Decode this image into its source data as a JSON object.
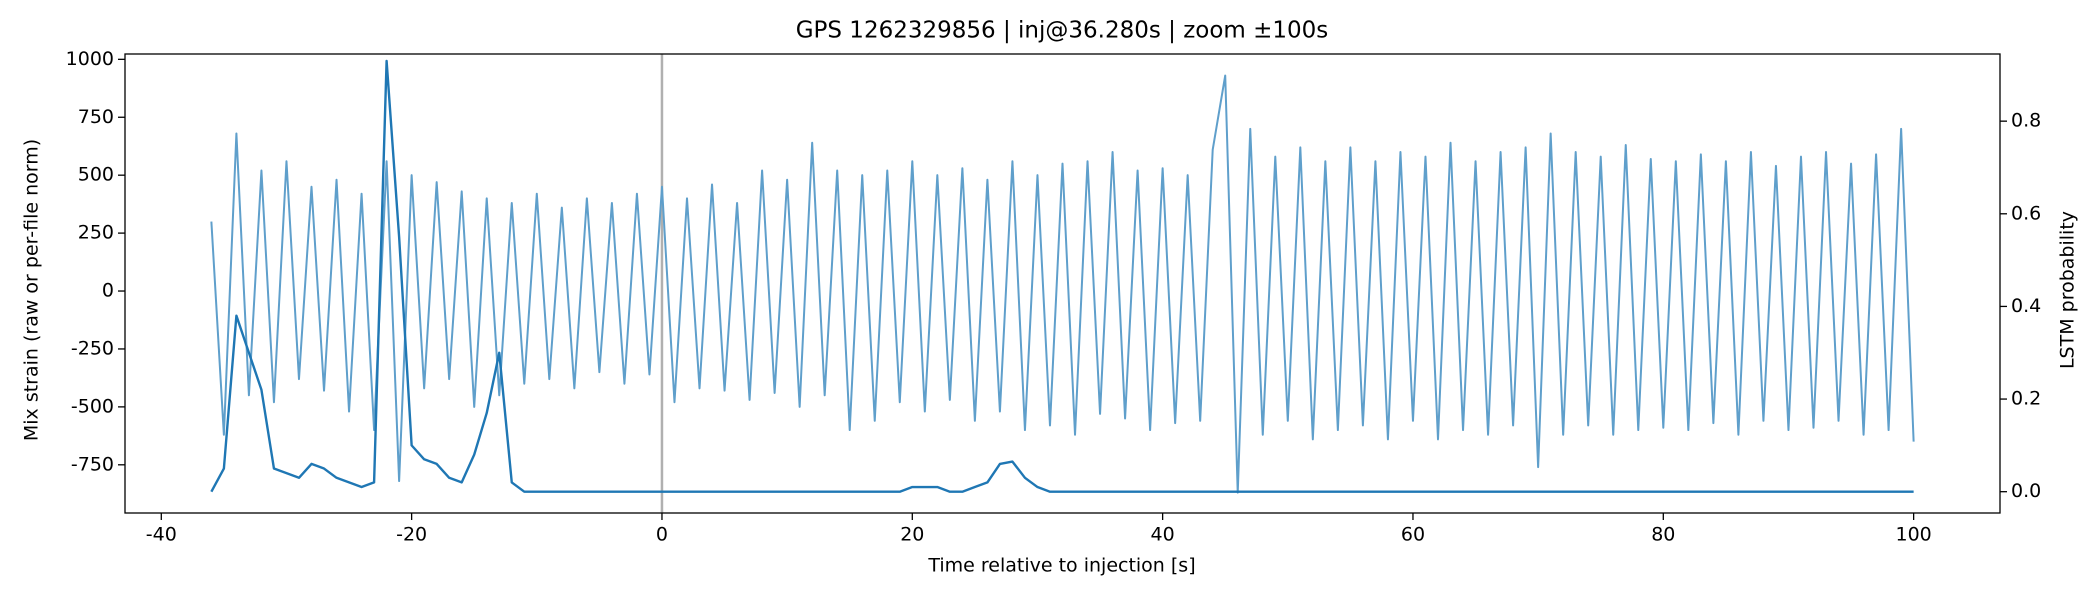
{
  "chart_data": {
    "type": "line",
    "title": "GPS 1262329856 | inj@36.280s | zoom ±100s",
    "x_label": "Time relative to injection [s]",
    "y_label": "Mix strain (raw or per-file norm)",
    "y2_label": "LSTM probability",
    "xlim": [
      -42.9,
      106.9
    ],
    "xticks": [
      -40,
      -20,
      0,
      20,
      40,
      60,
      80,
      100
    ],
    "ylim": [
      -958,
      1023
    ],
    "yticks": [
      -750,
      -500,
      -250,
      0,
      250,
      500,
      750,
      1000
    ],
    "y2lim": [
      -0.046,
      0.945
    ],
    "y2ticks": [
      {
        "value": 0,
        "label": "0.0"
      },
      0.2,
      0.4,
      0.6,
      0.8
    ],
    "grid": false,
    "vline": 0,
    "vline_color": "#b0b0b0",
    "x": [
      -36,
      -35,
      -34,
      -33,
      -32,
      -31,
      -30,
      -29,
      -28,
      -27,
      -26,
      -25,
      -24,
      -23,
      -22,
      -21,
      -20,
      -19,
      -18,
      -17,
      -16,
      -15,
      -14,
      -13,
      -12,
      -11,
      -10,
      -9,
      -8,
      -7,
      -6,
      -5,
      -4,
      -3,
      -2,
      -1,
      0,
      1,
      2,
      3,
      4,
      5,
      6,
      7,
      8,
      9,
      10,
      11,
      12,
      13,
      14,
      15,
      16,
      17,
      18,
      19,
      20,
      21,
      22,
      23,
      24,
      25,
      26,
      27,
      28,
      29,
      30,
      31,
      32,
      33,
      34,
      35,
      36,
      37,
      38,
      39,
      40,
      41,
      42,
      43,
      44,
      45,
      46,
      47,
      48,
      49,
      50,
      51,
      52,
      53,
      54,
      55,
      56,
      57,
      58,
      59,
      60,
      61,
      62,
      63,
      64,
      65,
      66,
      67,
      68,
      69,
      70,
      71,
      72,
      73,
      74,
      75,
      76,
      77,
      78,
      79,
      80,
      81,
      82,
      83,
      84,
      85,
      86,
      87,
      88,
      89,
      90,
      91,
      92,
      93,
      94,
      95,
      96,
      97,
      98,
      99,
      100
    ],
    "series": [
      {
        "name": "Mix strain",
        "color": "#5f9fcb",
        "axis": "y",
        "values": [
          300,
          -620,
          680,
          -450,
          520,
          -480,
          560,
          -380,
          450,
          -430,
          480,
          -520,
          420,
          -600,
          560,
          -820,
          500,
          -420,
          470,
          -380,
          430,
          -500,
          400,
          -450,
          380,
          -400,
          420,
          -380,
          360,
          -420,
          400,
          -350,
          380,
          -400,
          420,
          -360,
          450,
          -480,
          400,
          -420,
          460,
          -430,
          380,
          -470,
          520,
          -440,
          480,
          -500,
          640,
          -450,
          520,
          -600,
          500,
          -560,
          520,
          -480,
          560,
          -520,
          500,
          -470,
          530,
          -560,
          480,
          -520,
          560,
          -600,
          500,
          -580,
          550,
          -620,
          560,
          -530,
          600,
          -550,
          520,
          -600,
          530,
          -570,
          500,
          -560,
          610,
          930,
          -870,
          700,
          -620,
          580,
          -560,
          620,
          -640,
          560,
          -600,
          620,
          -580,
          560,
          -640,
          600,
          -560,
          580,
          -640,
          640,
          -600,
          560,
          -620,
          600,
          -580,
          620,
          -760,
          680,
          -620,
          600,
          -580,
          580,
          -620,
          630,
          -600,
          570,
          -590,
          560,
          -600,
          590,
          -570,
          560,
          -620,
          600,
          -560,
          540,
          -600,
          580,
          -590,
          600,
          -560,
          550,
          -620,
          590,
          -600,
          700,
          -650
        ]
      },
      {
        "name": "LSTM probability",
        "color": "#1f77b4",
        "axis": "y2",
        "values": [
          0,
          0.05,
          0.38,
          0.3,
          0.22,
          0.05,
          0.04,
          0.03,
          0.06,
          0.05,
          0.03,
          0.02,
          0.01,
          0.02,
          0.93,
          0.55,
          0.1,
          0.07,
          0.06,
          0.03,
          0.02,
          0.08,
          0.17,
          0.3,
          0.02,
          0,
          0,
          0,
          0,
          0,
          0,
          0,
          0,
          0,
          0,
          0,
          0,
          0,
          0,
          0,
          0,
          0,
          0,
          0,
          0,
          0,
          0,
          0,
          0,
          0,
          0,
          0,
          0,
          0,
          0,
          0,
          0.01,
          0.01,
          0.01,
          0,
          0,
          0.01,
          0.02,
          0.06,
          0.065,
          0.03,
          0.01,
          0,
          0,
          0,
          0,
          0,
          0,
          0,
          0,
          0,
          0,
          0,
          0,
          0,
          0,
          0,
          0,
          0,
          0,
          0,
          0,
          0,
          0,
          0,
          0,
          0,
          0,
          0,
          0,
          0,
          0,
          0,
          0,
          0,
          0,
          0,
          0,
          0,
          0,
          0,
          0,
          0,
          0,
          0,
          0,
          0,
          0,
          0,
          0,
          0,
          0,
          0,
          0,
          0,
          0,
          0,
          0,
          0,
          0,
          0,
          0,
          0,
          0,
          0,
          0,
          0,
          0,
          0,
          0,
          0,
          0
        ]
      }
    ]
  }
}
